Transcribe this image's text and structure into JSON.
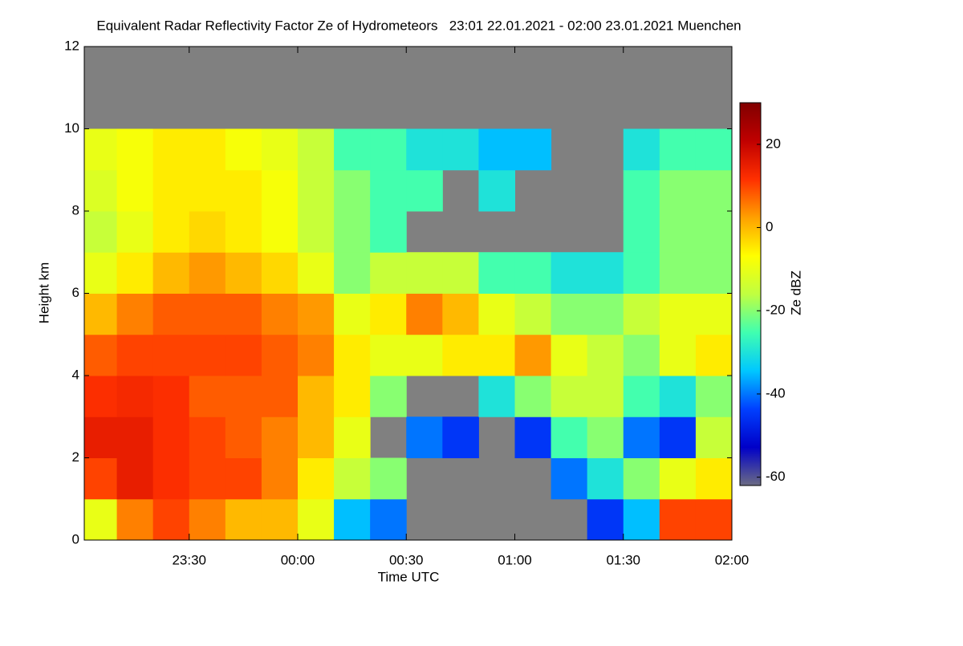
{
  "chart_data": {
    "type": "heatmap",
    "title": "Equivalent Radar Reflectivity Factor Ze of Hydrometeors   23:01 22.01.2021 - 02:00 23.01.2021 Muenchen",
    "xlabel": "Time UTC",
    "ylabel": "Height km",
    "colorbar_label": "Ze dBZ",
    "xlim": [
      1,
      180
    ],
    "ylim": [
      0,
      12
    ],
    "zlim": [
      -62,
      30
    ],
    "xticks": [
      {
        "value": 30,
        "label": "23:30"
      },
      {
        "value": 60,
        "label": "00:00"
      },
      {
        "value": 90,
        "label": "00:30"
      },
      {
        "value": 120,
        "label": "01:00"
      },
      {
        "value": 150,
        "label": "01:30"
      },
      {
        "value": 180,
        "label": "02:00"
      }
    ],
    "yticks": [
      0,
      2,
      4,
      6,
      8,
      10,
      12
    ],
    "zticks": [
      -60,
      -40,
      -20,
      0,
      20
    ],
    "background": "#808080",
    "colormap": [
      "#6c6c84",
      "#0000c8",
      "#0040ff",
      "#00c8ff",
      "#40ffb0",
      "#c0ff40",
      "#ffff00",
      "#ffa000",
      "#ff3000",
      "#c00000",
      "#800000"
    ],
    "xbins": [
      0,
      10,
      20,
      30,
      40,
      50,
      60,
      70,
      80,
      90,
      100,
      110,
      120,
      130,
      140,
      150,
      160,
      170,
      180
    ],
    "ybins": [
      0,
      1,
      2,
      3,
      4,
      5,
      6,
      7,
      8,
      9,
      10,
      11,
      12
    ],
    "z": [
      [
        -10,
        5,
        10,
        5,
        0,
        0,
        -10,
        -35,
        -40,
        null,
        null,
        null,
        null,
        null,
        -45,
        -35,
        10,
        10
      ],
      [
        10,
        15,
        12,
        10,
        10,
        5,
        -5,
        -15,
        -20,
        null,
        null,
        null,
        null,
        -40,
        -30,
        -20,
        -10,
        -5
      ],
      [
        15,
        15,
        12,
        10,
        8,
        5,
        0,
        -10,
        null,
        -40,
        -45,
        null,
        -45,
        -25,
        -20,
        -40,
        -45,
        -15
      ],
      [
        12,
        13,
        12,
        8,
        8,
        8,
        0,
        -5,
        -20,
        null,
        null,
        -30,
        -20,
        -15,
        -15,
        -25,
        -30,
        -20
      ],
      [
        8,
        10,
        10,
        10,
        10,
        8,
        5,
        -5,
        -10,
        -10,
        -5,
        -5,
        3,
        -10,
        -15,
        -20,
        -10,
        -5
      ],
      [
        0,
        5,
        8,
        8,
        8,
        5,
        3,
        -10,
        -5,
        5,
        0,
        -10,
        -15,
        -20,
        -20,
        -15,
        -10,
        -10
      ],
      [
        -10,
        -5,
        0,
        3,
        0,
        -3,
        -10,
        -20,
        -15,
        -15,
        -15,
        -25,
        -25,
        -30,
        -30,
        -25,
        -20,
        -20
      ],
      [
        -15,
        -10,
        -5,
        -3,
        -5,
        -8,
        -15,
        -20,
        -25,
        null,
        null,
        null,
        null,
        null,
        null,
        -25,
        -20,
        -20
      ],
      [
        -12,
        -8,
        -5,
        -5,
        -5,
        -8,
        -15,
        -20,
        -25,
        -25,
        null,
        -30,
        null,
        null,
        null,
        -25,
        -20,
        -20
      ],
      [
        -10,
        -8,
        -5,
        -5,
        -8,
        -10,
        -15,
        -25,
        -25,
        -30,
        -30,
        -35,
        -35,
        null,
        null,
        -30,
        -25,
        -25
      ],
      [
        null,
        null,
        null,
        null,
        null,
        null,
        null,
        null,
        null,
        null,
        null,
        null,
        null,
        null,
        null,
        null,
        null,
        null
      ],
      [
        null,
        null,
        null,
        null,
        null,
        null,
        null,
        null,
        null,
        null,
        null,
        null,
        null,
        null,
        null,
        null,
        null,
        null
      ]
    ]
  }
}
